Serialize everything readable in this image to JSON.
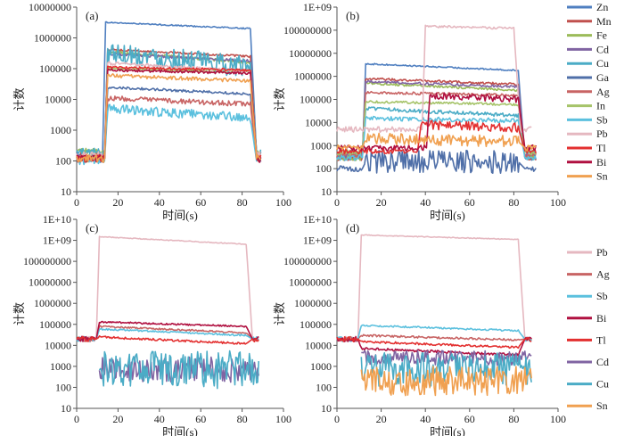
{
  "series_colors": {
    "Zn": "#4f7fc0",
    "Mn": "#c0504d",
    "Fe": "#9bbb59",
    "Cd": "#8064a2",
    "Cu": "#4bacc6",
    "Ga": "#4f6fa8",
    "Ag": "#c86464",
    "In": "#a6c46a",
    "Sb": "#5bc0de",
    "Pb": "#e5b8c0",
    "Tl": "#e33030",
    "Bi": "#b01040",
    "Sn": "#f0a050"
  },
  "chart_data": [
    {
      "id": "a",
      "type": "line",
      "panel_label": "(a)",
      "xlabel": "时间(s)",
      "ylabel": "计数",
      "xlim": [
        0,
        100
      ],
      "ylim": [
        10,
        10000000
      ],
      "yscale": "log",
      "xticks": [
        0,
        20,
        40,
        60,
        80,
        100
      ],
      "yticks": [
        10,
        100,
        1000,
        10000,
        100000,
        1000000,
        10000000
      ],
      "ytick_labels": [
        "10",
        "100",
        "1000",
        "10000",
        "100000",
        "1000000",
        "10000000"
      ],
      "series": [
        {
          "name": "Zn",
          "shape": "plateau",
          "bg": 150,
          "level": 3200000,
          "end": 2000000,
          "noise": 0.02,
          "start": 14,
          "stop": 84,
          "tail": 89
        },
        {
          "name": "Mn",
          "shape": "plateau",
          "bg": 150,
          "level": 420000,
          "end": 250000,
          "noise": 0.03,
          "start": 15,
          "stop": 84,
          "tail": 89
        },
        {
          "name": "Fe",
          "shape": "plateau",
          "bg": 200,
          "level": 350000,
          "end": 160000,
          "noise": 0.05,
          "start": 15,
          "stop": 84,
          "tail": 89
        },
        {
          "name": "Cd",
          "shape": "plateau",
          "bg": 120,
          "level": 300000,
          "end": 180000,
          "noise": 0.04,
          "start": 15,
          "stop": 84,
          "tail": 89
        },
        {
          "name": "Cu",
          "shape": "plateau",
          "bg": 200,
          "level": 350000,
          "end": 110000,
          "noise": 0.35,
          "start": 15,
          "stop": 84,
          "tail": 89
        },
        {
          "name": "Ga",
          "shape": "plateau",
          "bg": 120,
          "level": 25000,
          "end": 15000,
          "noise": 0.04,
          "start": 15,
          "stop": 84,
          "tail": 89
        },
        {
          "name": "Ag",
          "shape": "plateau",
          "bg": 120,
          "level": 11000,
          "end": 7000,
          "noise": 0.08,
          "start": 15,
          "stop": 84,
          "tail": 89
        },
        {
          "name": "In",
          "shape": "plateau",
          "bg": 120,
          "level": 100000,
          "end": 80000,
          "noise": 0.05,
          "start": 15,
          "stop": 84,
          "tail": 89
        },
        {
          "name": "Sb",
          "shape": "plateau",
          "bg": 100,
          "level": 5000,
          "end": 2500,
          "noise": 0.15,
          "start": 15,
          "stop": 84,
          "tail": 89
        },
        {
          "name": "Pb",
          "shape": "plateau",
          "bg": 150,
          "level": 150000,
          "end": 80000,
          "noise": 0.06,
          "start": 15,
          "stop": 84,
          "tail": 89
        },
        {
          "name": "Tl",
          "shape": "plateau",
          "bg": 120,
          "level": 110000,
          "end": 90000,
          "noise": 0.04,
          "start": 15,
          "stop": 84,
          "tail": 89
        },
        {
          "name": "Bi",
          "shape": "plateau",
          "bg": 120,
          "level": 90000,
          "end": 70000,
          "noise": 0.04,
          "start": 15,
          "stop": 84,
          "tail": 89
        },
        {
          "name": "Sn",
          "shape": "plateau",
          "bg": 120,
          "level": 60000,
          "end": 40000,
          "noise": 0.06,
          "start": 15,
          "stop": 84,
          "tail": 89
        }
      ]
    },
    {
      "id": "b",
      "type": "line",
      "panel_label": "(b)",
      "xlabel": "时间(s)",
      "ylabel": "计数",
      "xlim": [
        0,
        100
      ],
      "ylim": [
        10,
        1000000000
      ],
      "yscale": "log",
      "xticks": [
        0,
        20,
        40,
        60,
        80,
        100
      ],
      "yticks": [
        10,
        100,
        1000,
        10000,
        100000,
        1000000,
        10000000,
        100000000,
        1000000000
      ],
      "ytick_labels": [
        "10",
        "100",
        "1000",
        "10000",
        "100000",
        "1000000",
        "10000000",
        "100000000",
        "1E+09"
      ],
      "series": [
        {
          "name": "Zn",
          "shape": "plateau",
          "bg": 300,
          "level": 3500000,
          "end": 1800000,
          "noise": 0.03,
          "start": 13,
          "stop": 82,
          "tail": 90
        },
        {
          "name": "Mn",
          "shape": "plateau",
          "bg": 300,
          "level": 800000,
          "end": 450000,
          "noise": 0.05,
          "start": 13,
          "stop": 82,
          "tail": 90
        },
        {
          "name": "Fe",
          "shape": "plateau",
          "bg": 300,
          "level": 500000,
          "end": 250000,
          "noise": 0.05,
          "start": 13,
          "stop": 82,
          "tail": 90
        },
        {
          "name": "Cd",
          "shape": "plateau",
          "bg": 400,
          "level": 600000,
          "end": 350000,
          "noise": 0.05,
          "start": 13,
          "stop": 82,
          "tail": 90
        },
        {
          "name": "Cu",
          "shape": "plateau",
          "bg": 500,
          "level": 40000,
          "end": 20000,
          "noise": 0.08,
          "start": 13,
          "stop": 82,
          "tail": 90
        },
        {
          "name": "Ga",
          "shape": "plateau",
          "bg": 100,
          "level": 200,
          "end": 200,
          "noise": 0.5,
          "start": 13,
          "stop": 82,
          "tail": 90
        },
        {
          "name": "Ag",
          "shape": "plateau",
          "bg": 400,
          "level": 200000,
          "end": 150000,
          "noise": 0.06,
          "start": 13,
          "stop": 82,
          "tail": 90
        },
        {
          "name": "In",
          "shape": "plateau",
          "bg": 500,
          "level": 80000,
          "end": 60000,
          "noise": 0.05,
          "start": 13,
          "stop": 82,
          "tail": 90
        },
        {
          "name": "Sb",
          "shape": "plateau",
          "bg": 300,
          "level": 15000,
          "end": 12000,
          "noise": 0.1,
          "start": 13,
          "stop": 82,
          "tail": 90
        },
        {
          "name": "Pb",
          "shape": "plateau",
          "bg": 5000,
          "level": 150000000,
          "end": 120000000,
          "noise": 0.05,
          "start": 40,
          "stop": 80,
          "tail": 88
        },
        {
          "name": "Tl",
          "shape": "plateau",
          "bg": 600,
          "level": 8000,
          "end": 6000,
          "noise": 0.2,
          "start": 38,
          "stop": 82,
          "tail": 90
        },
        {
          "name": "Bi",
          "shape": "plateau",
          "bg": 800,
          "level": 150000,
          "end": 100000,
          "noise": 0.15,
          "start": 42,
          "stop": 82,
          "tail": 90
        },
        {
          "name": "Sn",
          "shape": "plateau",
          "bg": 800,
          "level": 2000,
          "end": 1500,
          "noise": 0.25,
          "start": 13,
          "stop": 82,
          "tail": 90
        }
      ]
    },
    {
      "id": "c",
      "type": "line",
      "panel_label": "(c)",
      "xlabel": "时间(s)",
      "ylabel": "计数",
      "xlim": [
        0,
        100
      ],
      "ylim": [
        10,
        10000000000
      ],
      "yscale": "log",
      "xticks": [
        0,
        20,
        40,
        60,
        80,
        100
      ],
      "yticks": [
        10,
        100,
        1000,
        10000,
        100000,
        1000000,
        10000000,
        100000000,
        1000000000,
        10000000000
      ],
      "ytick_labels": [
        "10",
        "100",
        "1000",
        "10000",
        "100000",
        "1000000",
        "10000000",
        "100000000",
        "1E+09",
        "1E+10"
      ],
      "series": [
        {
          "name": "Pb",
          "shape": "plateau",
          "bg": 20000,
          "level": 1500000000,
          "end": 650000000,
          "noise": 0.02,
          "start": 11,
          "stop": 82,
          "tail": 88
        },
        {
          "name": "Ag",
          "shape": "plateau",
          "bg": 20000,
          "level": 80000,
          "end": 40000,
          "noise": 0.04,
          "start": 11,
          "stop": 82,
          "tail": 88
        },
        {
          "name": "Sb",
          "shape": "plateau",
          "bg": 20000,
          "level": 60000,
          "end": 30000,
          "noise": 0.04,
          "start": 11,
          "stop": 82,
          "tail": 88
        },
        {
          "name": "Bi",
          "shape": "plateau",
          "bg": 20000,
          "level": 130000,
          "end": 80000,
          "noise": 0.04,
          "start": 11,
          "stop": 82,
          "tail": 88
        },
        {
          "name": "Tl",
          "shape": "plateau",
          "bg": 20000,
          "level": 25000,
          "end": 12000,
          "noise": 0.05,
          "start": 11,
          "stop": 82,
          "tail": 88
        },
        {
          "name": "Cd",
          "shape": "noisy",
          "level": 700,
          "noise": 0.6,
          "start": 11,
          "stop": 84,
          "tail": 88
        },
        {
          "name": "Cu",
          "shape": "noisy",
          "level": 700,
          "noise": 0.9,
          "start": 11,
          "stop": 84,
          "tail": 88
        }
      ]
    },
    {
      "id": "d",
      "type": "line",
      "panel_label": "(d)",
      "xlabel": "时间(s)",
      "ylabel": "计数",
      "xlim": [
        0,
        100
      ],
      "ylim": [
        10,
        10000000000
      ],
      "yscale": "log",
      "xticks": [
        0,
        20,
        40,
        60,
        80,
        100
      ],
      "yticks": [
        10,
        100,
        1000,
        10000,
        100000,
        1000000,
        10000000,
        100000000,
        1000000000,
        10000000000
      ],
      "ytick_labels": [
        "10",
        "100",
        "1000",
        "10000",
        "100000",
        "1000000",
        "10000000",
        "100000000",
        "1E+09",
        "1E+10"
      ],
      "series": [
        {
          "name": "Pb",
          "shape": "plateau",
          "bg": 20000,
          "level": 1800000000,
          "end": 1100000000,
          "noise": 0.02,
          "start": 11,
          "stop": 82,
          "tail": 88
        },
        {
          "name": "Ag",
          "shape": "plateau",
          "bg": 20000,
          "level": 30000,
          "end": 18000,
          "noise": 0.05,
          "start": 11,
          "stop": 82,
          "tail": 88
        },
        {
          "name": "Sb",
          "shape": "plateau",
          "bg": 20000,
          "level": 90000,
          "end": 50000,
          "noise": 0.04,
          "start": 11,
          "stop": 82,
          "tail": 88
        },
        {
          "name": "Bi",
          "shape": "plateau",
          "bg": 20000,
          "level": 7000,
          "end": 3500,
          "noise": 0.06,
          "start": 11,
          "stop": 82,
          "tail": 88
        },
        {
          "name": "Tl",
          "shape": "plateau",
          "bg": 20000,
          "level": 15000,
          "end": 8000,
          "noise": 0.05,
          "start": 11,
          "stop": 82,
          "tail": 88
        },
        {
          "name": "Cd",
          "shape": "noisy",
          "level": 2500,
          "noise": 0.35,
          "start": 11,
          "stop": 82,
          "tail": 88
        },
        {
          "name": "Cu",
          "shape": "noisy",
          "level": 700,
          "noise": 0.8,
          "start": 11,
          "stop": 82,
          "tail": 88
        },
        {
          "name": "Sn",
          "shape": "noisy",
          "level": 200,
          "noise": 0.7,
          "start": 11,
          "stop": 82,
          "tail": 88
        }
      ]
    }
  ],
  "legends": {
    "top": [
      "Zn",
      "Mn",
      "Fe",
      "Cd",
      "Cu",
      "Ga",
      "Ag",
      "In",
      "Sb",
      "Pb",
      "Tl",
      "Bi",
      "Sn"
    ],
    "bottom": [
      "Pb",
      "Ag",
      "Sb",
      "Bi",
      "Tl",
      "Cd",
      "Cu",
      "Sn"
    ]
  }
}
